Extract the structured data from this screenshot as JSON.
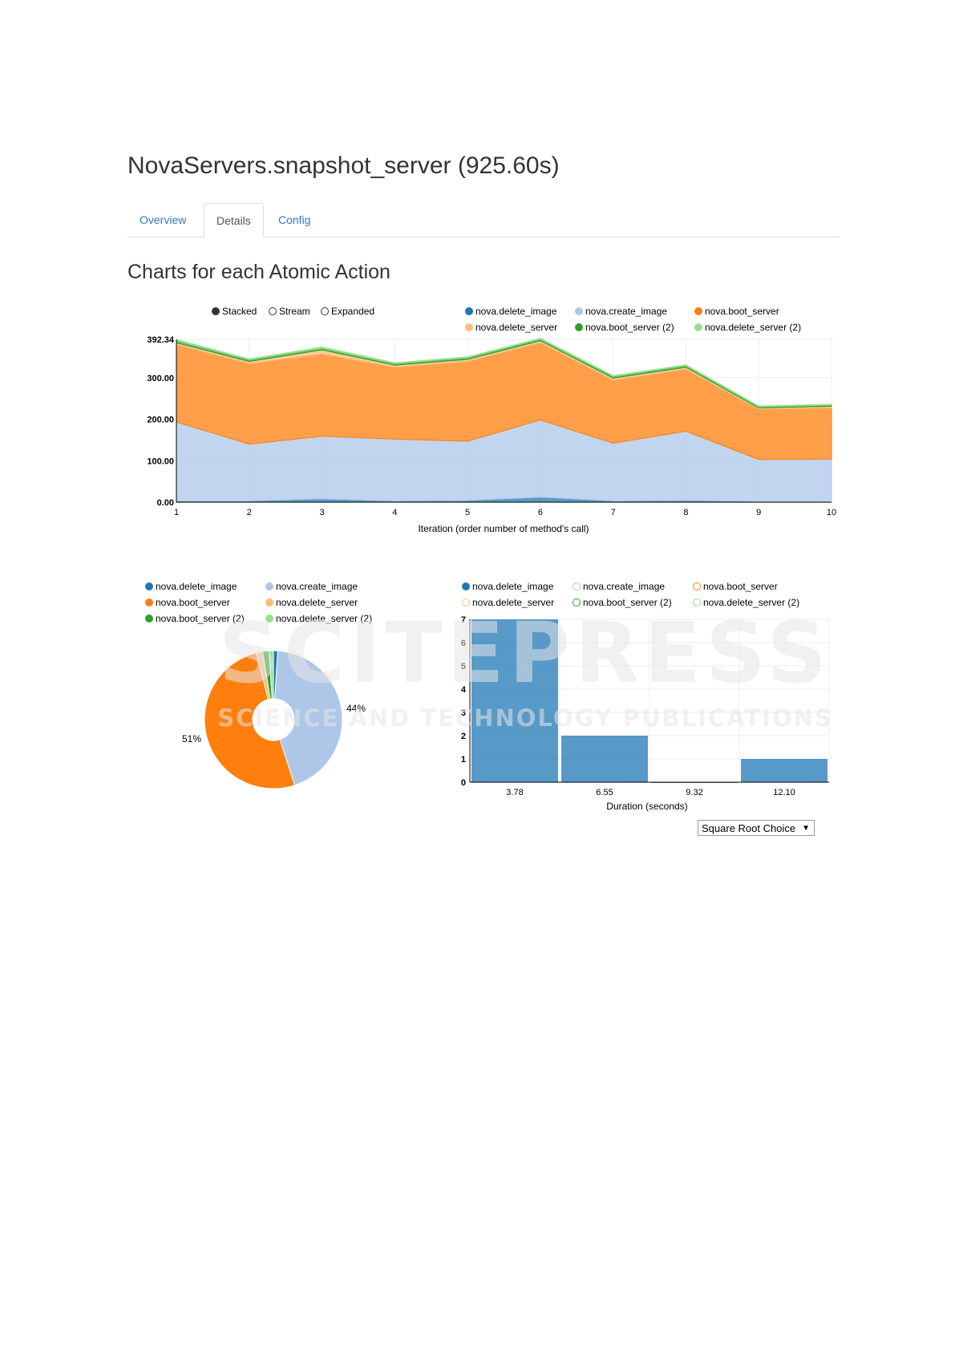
{
  "page": {
    "title": "NovaServers.snapshot_server (925.60s)",
    "tabs": [
      {
        "label": "Overview",
        "active": false
      },
      {
        "label": "Details",
        "active": true
      },
      {
        "label": "Config",
        "active": false
      }
    ],
    "section_title": "Charts for each Atomic Action"
  },
  "colors": {
    "nova.delete_image": "#1f77b4",
    "nova.create_image": "#aec7e8",
    "nova.boot_server": "#ff7f0e",
    "nova.delete_server": "#ffbb78",
    "nova.boot_server (2)": "#2ca02c",
    "nova.delete_server (2)": "#98df8a",
    "tab_link": "#337ab7",
    "watermark": "#e6e6e6"
  },
  "stack_controls": {
    "options": [
      "Stacked",
      "Stream",
      "Expanded"
    ],
    "selected": "Stacked"
  },
  "histogram_select": {
    "value": "Square Root Choice"
  },
  "watermark": {
    "line1": "SCITEPRESS",
    "line2": "SCIENCE AND TECHNOLOGY PUBLICATIONS"
  },
  "chart_data": [
    {
      "type": "area",
      "stacked": true,
      "xlabel": "Iteration (order number of method's call)",
      "ylabel": "",
      "x": [
        1,
        2,
        3,
        4,
        5,
        6,
        7,
        8,
        9,
        10
      ],
      "ylim": [
        0,
        392.34
      ],
      "yticks": [
        "0.00",
        "100.00",
        "200.00",
        "300.00",
        "392.34"
      ],
      "legend": "top",
      "series": [
        {
          "name": "nova.delete_image",
          "values": [
            3,
            3,
            8,
            3,
            4,
            12,
            3,
            4,
            2,
            1
          ]
        },
        {
          "name": "nova.create_image",
          "values": [
            190,
            137,
            151,
            149,
            143,
            186,
            139,
            167,
            101,
            103
          ]
        },
        {
          "name": "nova.boot_server",
          "values": [
            186,
            194,
            198,
            173,
            192,
            186,
            152,
            149,
            121,
            123
          ]
        },
        {
          "name": "nova.delete_server",
          "values": [
            5,
            5,
            10,
            5,
            5,
            5,
            5,
            5,
            3,
            4
          ]
        },
        {
          "name": "nova.boot_server (2)",
          "values": [
            5,
            4,
            4,
            4,
            4,
            4,
            4,
            4,
            3,
            3
          ]
        },
        {
          "name": "nova.delete_server (2)",
          "values": [
            3,
            2,
            3,
            2,
            2,
            2,
            2,
            2,
            2,
            2
          ]
        }
      ]
    },
    {
      "type": "pie",
      "donut": true,
      "legend": "top",
      "series": [
        {
          "name": "nova.delete_image",
          "value": 1
        },
        {
          "name": "nova.create_image",
          "value": 44
        },
        {
          "name": "nova.boot_server",
          "value": 51
        },
        {
          "name": "nova.delete_server",
          "value": 1.5
        },
        {
          "name": "nova.boot_server (2)",
          "value": 1.5
        },
        {
          "name": "nova.delete_server (2)",
          "value": 1
        }
      ],
      "labels": [
        "44%",
        "51%"
      ]
    },
    {
      "type": "bar",
      "xlabel": "Duration (seconds)",
      "ylabel": "",
      "categories": [
        "3.78",
        "6.55",
        "9.32",
        "12.10"
      ],
      "values": [
        7,
        2,
        0,
        1
      ],
      "ylim": [
        0,
        7
      ],
      "yticks": [
        0,
        1,
        2,
        3,
        4,
        5,
        6,
        7
      ],
      "legend": "top",
      "series_names": [
        "nova.delete_image",
        "nova.create_image",
        "nova.boot_server",
        "nova.delete_server",
        "nova.boot_server (2)",
        "nova.delete_server (2)"
      ],
      "active_series": "nova.delete_image"
    }
  ]
}
